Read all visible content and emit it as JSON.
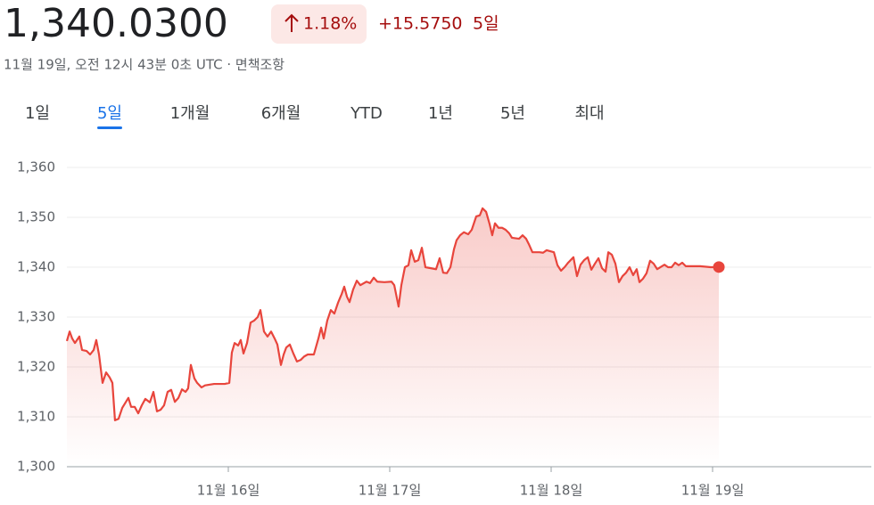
{
  "header": {
    "price": "1,340.0300",
    "change_percent": "1.18%",
    "change": "+15.5750",
    "period": "5일",
    "timestamp": "11월 19일, 오전 12시 43분 0초 UTC · 면책조항"
  },
  "tabs": {
    "items": [
      "1일",
      "5일",
      "1개월",
      "6개월",
      "YTD",
      "1년",
      "5년",
      "최대"
    ],
    "selected": 1
  },
  "chart_data": {
    "type": "line",
    "color": "#e8453c",
    "area": true,
    "grid": true,
    "xlim": [
      15,
      20
    ],
    "ylim": [
      1300,
      1360
    ],
    "xticks": [
      {
        "value": 16,
        "label": "11월 16일"
      },
      {
        "value": 17,
        "label": "11월 17일"
      },
      {
        "value": 18,
        "label": "11월 18일"
      },
      {
        "value": 19,
        "label": "11월 19일"
      }
    ],
    "yticks": [
      {
        "value": 1300,
        "label": "1,300"
      },
      {
        "value": 1310,
        "label": "1,310"
      },
      {
        "value": 1320,
        "label": "1,320"
      },
      {
        "value": 1330,
        "label": "1,330"
      },
      {
        "value": 1340,
        "label": "1,340"
      },
      {
        "value": 1350,
        "label": "1,350"
      },
      {
        "value": 1360,
        "label": "1,360"
      }
    ],
    "x": [
      15.0,
      15.017,
      15.033,
      15.05,
      15.077,
      15.094,
      15.122,
      15.144,
      15.166,
      15.182,
      15.199,
      15.221,
      15.243,
      15.265,
      15.282,
      15.298,
      15.32,
      15.343,
      15.381,
      15.398,
      15.42,
      15.442,
      15.464,
      15.486,
      15.514,
      15.536,
      15.558,
      15.58,
      15.602,
      15.624,
      15.646,
      15.669,
      15.691,
      15.713,
      15.735,
      15.751,
      15.768,
      15.79,
      15.807,
      15.834,
      15.856,
      15.912,
      15.978,
      16.006,
      16.022,
      16.039,
      16.061,
      16.077,
      16.094,
      16.116,
      16.138,
      16.16,
      16.182,
      16.199,
      16.221,
      16.243,
      16.265,
      16.287,
      16.304,
      16.326,
      16.343,
      16.359,
      16.381,
      16.403,
      16.425,
      16.448,
      16.47,
      16.492,
      16.53,
      16.558,
      16.575,
      16.591,
      16.613,
      16.635,
      16.657,
      16.68,
      16.702,
      16.718,
      16.735,
      16.751,
      16.773,
      16.796,
      16.818,
      16.856,
      16.878,
      16.901,
      16.923,
      16.967,
      17.011,
      17.028,
      17.055,
      17.072,
      17.094,
      17.116,
      17.133,
      17.155,
      17.177,
      17.199,
      17.221,
      17.287,
      17.309,
      17.331,
      17.354,
      17.376,
      17.398,
      17.414,
      17.436,
      17.459,
      17.486,
      17.508,
      17.536,
      17.558,
      17.575,
      17.597,
      17.619,
      17.635,
      17.652,
      17.674,
      17.696,
      17.718,
      17.74,
      17.757,
      17.801,
      17.823,
      17.845,
      17.862,
      17.884,
      17.928,
      17.95,
      17.972,
      18.017,
      18.039,
      18.061,
      18.083,
      18.105,
      18.138,
      18.16,
      18.182,
      18.204,
      18.227,
      18.249,
      18.271,
      18.293,
      18.315,
      18.337,
      18.354,
      18.376,
      18.398,
      18.42,
      18.442,
      18.464,
      18.486,
      18.508,
      18.53,
      18.547,
      18.569,
      18.591,
      18.613,
      18.635,
      18.657,
      18.702,
      18.724,
      18.746,
      18.768,
      18.79,
      18.812,
      18.834,
      18.923,
      18.989,
      19.039
    ],
    "values": [
      1325.2,
      1327.1,
      1325.7,
      1324.8,
      1326.1,
      1323.4,
      1323.2,
      1322.5,
      1323.4,
      1325.4,
      1322.5,
      1316.8,
      1318.9,
      1317.9,
      1316.8,
      1309.3,
      1309.6,
      1311.8,
      1313.8,
      1312.0,
      1312.0,
      1310.7,
      1312.3,
      1313.6,
      1312.9,
      1315.0,
      1311.1,
      1311.4,
      1312.3,
      1315.0,
      1315.4,
      1313.0,
      1313.8,
      1315.5,
      1315.0,
      1315.7,
      1320.4,
      1317.7,
      1316.8,
      1315.9,
      1316.3,
      1316.6,
      1316.6,
      1316.8,
      1322.9,
      1324.8,
      1324.3,
      1325.4,
      1322.7,
      1324.8,
      1328.9,
      1329.3,
      1330.0,
      1331.4,
      1327.1,
      1326.1,
      1327.1,
      1325.7,
      1324.5,
      1320.4,
      1322.5,
      1323.9,
      1324.5,
      1322.7,
      1321.1,
      1321.4,
      1322.1,
      1322.5,
      1322.5,
      1325.7,
      1327.9,
      1325.7,
      1329.3,
      1331.4,
      1330.7,
      1332.9,
      1334.6,
      1336.1,
      1334.1,
      1333.0,
      1335.5,
      1337.3,
      1336.4,
      1337.1,
      1336.8,
      1337.9,
      1337.1,
      1337.0,
      1337.1,
      1336.4,
      1332.1,
      1336.4,
      1340.0,
      1340.4,
      1343.4,
      1341.1,
      1341.4,
      1343.9,
      1340.0,
      1339.6,
      1341.8,
      1338.9,
      1338.8,
      1340.0,
      1343.6,
      1345.4,
      1346.4,
      1347.0,
      1346.6,
      1347.5,
      1350.2,
      1350.4,
      1351.8,
      1351.1,
      1348.6,
      1346.4,
      1348.8,
      1347.9,
      1347.9,
      1347.5,
      1346.8,
      1345.9,
      1345.7,
      1346.4,
      1345.7,
      1344.6,
      1343.0,
      1343.0,
      1342.9,
      1343.4,
      1343.0,
      1340.4,
      1339.3,
      1340.0,
      1340.9,
      1342.0,
      1338.2,
      1340.5,
      1341.4,
      1342.0,
      1339.5,
      1340.7,
      1341.8,
      1339.8,
      1339.1,
      1343.0,
      1342.5,
      1340.7,
      1337.0,
      1338.2,
      1338.9,
      1340.0,
      1338.4,
      1339.6,
      1337.0,
      1337.7,
      1338.8,
      1341.3,
      1340.7,
      1339.6,
      1340.5,
      1340.0,
      1340.0,
      1340.9,
      1340.4,
      1340.9,
      1340.2,
      1340.2,
      1340.0,
      1340.03
    ]
  }
}
